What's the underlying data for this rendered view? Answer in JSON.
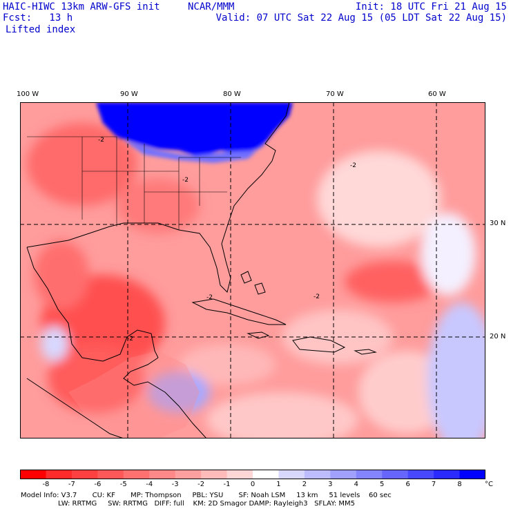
{
  "header": {
    "title": "HAIC-HIWC 13km ARW-GFS init",
    "org": "NCAR/MMM",
    "init": "Init: 18 UTC Fri 21 Aug 15",
    "fcst": "Fcst:   13 h",
    "valid": "Valid: 07 UTC Sat 22 Aug 15 (05 LDT Sat 22 Aug 15)",
    "field": "Lifted index"
  },
  "axes": {
    "lon_labels": [
      "100 W",
      "90 W",
      "80 W",
      "70 W",
      "60 W"
    ],
    "lat_labels": [
      "30 N",
      "20 N"
    ]
  },
  "contour_labels": [
    "-2",
    "-2",
    "-2",
    "-2",
    "-2",
    "-2"
  ],
  "colorbar": {
    "ticks": [
      "-8",
      "-7",
      "-6",
      "-5",
      "-4",
      "-3",
      "-2",
      "-1",
      "0",
      "1",
      "2",
      "3",
      "4",
      "5",
      "6",
      "7",
      "8"
    ],
    "unit": "°C",
    "colors": [
      "#ff0000",
      "#ff2a2a",
      "#ff4040",
      "#ff5858",
      "#ff7070",
      "#ff8888",
      "#ffa0a0",
      "#ffbaba",
      "#ffd6d6",
      "#ffffff",
      "#d8d8ff",
      "#bcbcff",
      "#a0a0ff",
      "#8484ff",
      "#6666ff",
      "#4848ff",
      "#2a2aff",
      "#0000ff"
    ]
  },
  "model_info": {
    "line1": "Model Info: V3.7       CU: KF       MP: Thompson     PBL: YSU       SF: Noah LSM     13 km     51 levels    60 sec",
    "line2": "                 LW: RRTMG     SW: RRTMG   DIFF: full    KM: 2D Smagor DAMP: Rayleigh3   SFLAY: MM5"
  }
}
